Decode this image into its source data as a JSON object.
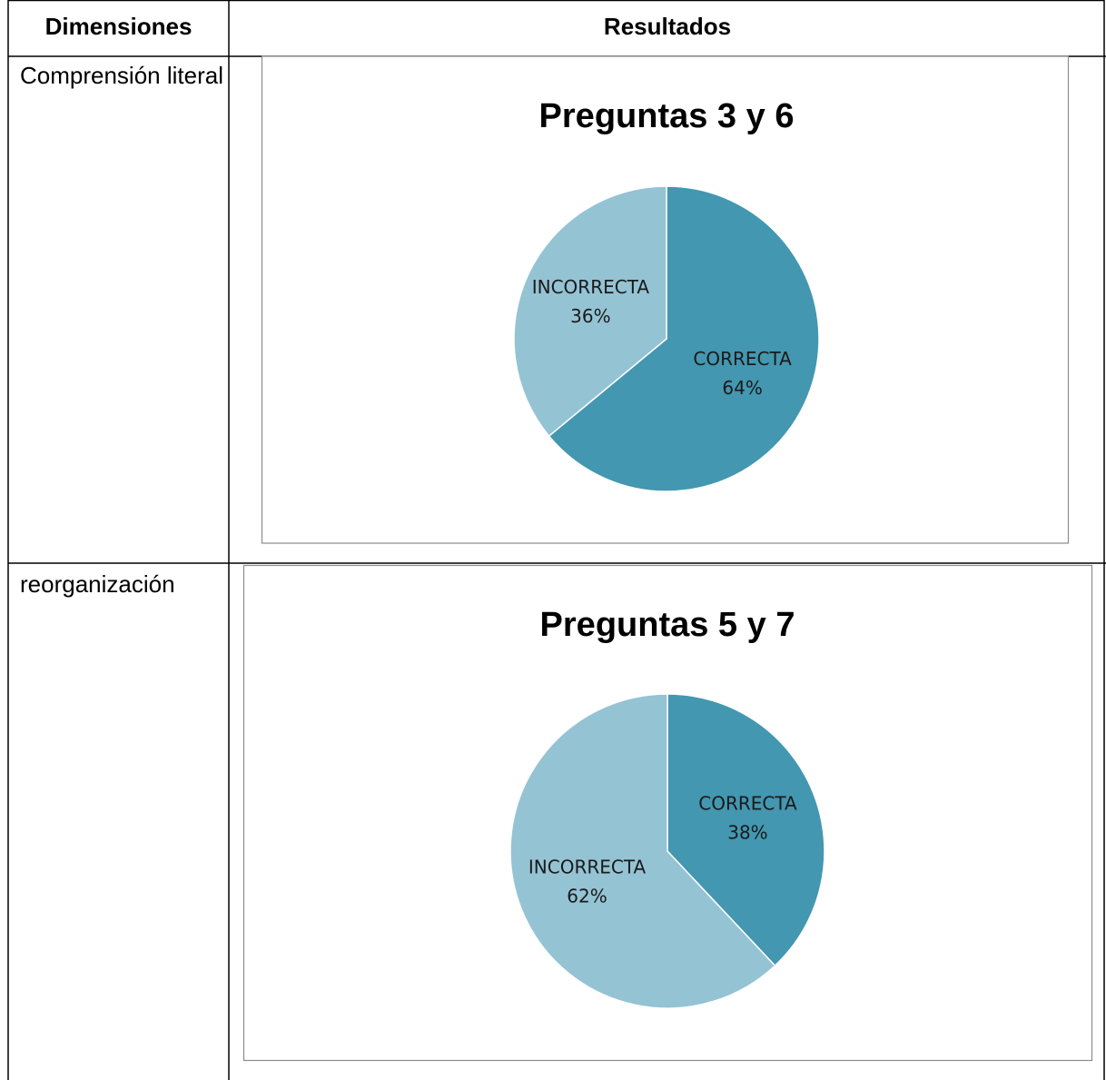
{
  "table": {
    "headers": [
      "Dimensiones",
      "Resultados"
    ],
    "rows": [
      {
        "dimension": "Comprensión literal",
        "chart": {
          "type": "pie",
          "title": "Preguntas 3 y 6",
          "categories": [
            "CORRECTA",
            "INCORRECTA"
          ],
          "values": [
            64,
            36
          ],
          "value_labels": [
            "64%",
            "36%"
          ],
          "colors": [
            "#4397b0",
            "#94c3d4"
          ]
        }
      },
      {
        "dimension": "reorganización",
        "chart": {
          "type": "pie",
          "title": "Preguntas 5 y 7",
          "categories": [
            "CORRECTA",
            "INCORRECTA"
          ],
          "values": [
            38,
            62
          ],
          "value_labels": [
            "38%",
            "62%"
          ],
          "colors": [
            "#4397b0",
            "#94c3d4"
          ]
        }
      }
    ]
  }
}
